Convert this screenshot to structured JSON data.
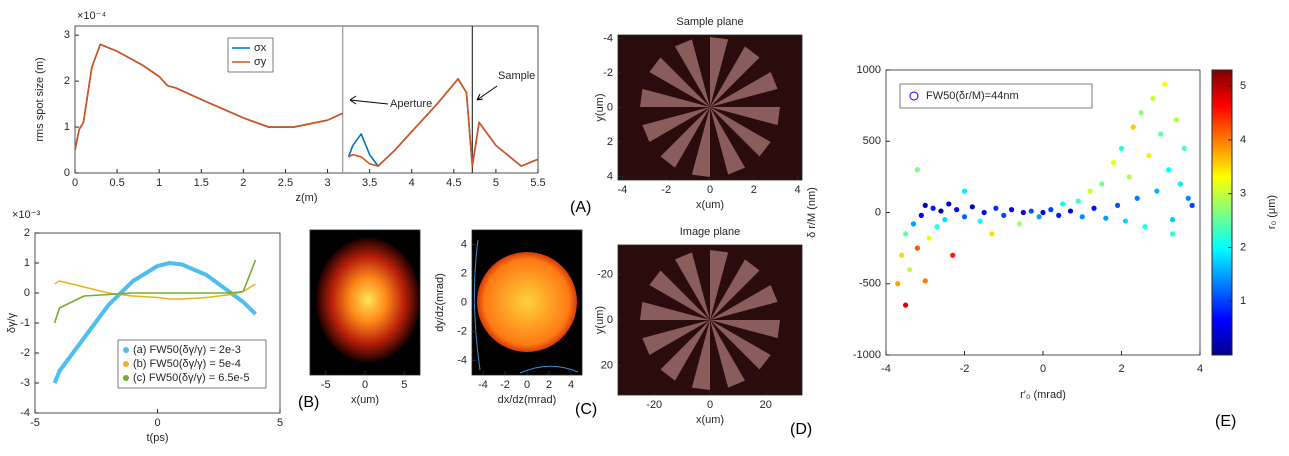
{
  "chart_data": [
    {
      "type": "line",
      "panel_label": "(A)",
      "xlabel": "z(m)",
      "ylabel": "rms spot size (m)",
      "y_multiplier": "×10⁻⁴",
      "annotations": [
        {
          "text": "Aperture",
          "x": 3.18
        },
        {
          "text": "Sample",
          "x": 4.72
        }
      ],
      "x": [
        0,
        0.05,
        0.1,
        0.2,
        0.3,
        0.5,
        0.8,
        1.0,
        1.1,
        1.2,
        1.5,
        2.0,
        2.3,
        2.6,
        3.0,
        3.18,
        3.2,
        3.25,
        3.3,
        3.4,
        3.5,
        3.6,
        3.8,
        4.0,
        4.3,
        4.55,
        4.65,
        4.72,
        4.8,
        5.0,
        5.3,
        5.5
      ],
      "series": [
        {
          "name": "σx",
          "color": "#0072bd",
          "values": [
            0.5,
            0.95,
            1.1,
            2.3,
            2.8,
            2.65,
            2.35,
            2.1,
            1.9,
            1.85,
            1.6,
            1.2,
            1.0,
            1.0,
            1.15,
            1.3,
            null,
            0.35,
            0.6,
            0.85,
            0.4,
            0.15,
            0.5,
            0.9,
            1.5,
            2.05,
            1.75,
            0.15,
            1.1,
            0.6,
            0.15,
            0.3
          ]
        },
        {
          "name": "σy",
          "color": "#d95319",
          "values": [
            0.5,
            0.95,
            1.1,
            2.3,
            2.8,
            2.65,
            2.35,
            2.1,
            1.9,
            1.85,
            1.6,
            1.2,
            1.0,
            1.0,
            1.15,
            1.3,
            null,
            0.35,
            0.4,
            0.35,
            0.2,
            0.15,
            0.5,
            0.9,
            1.5,
            2.05,
            1.75,
            0.15,
            1.1,
            0.6,
            0.15,
            0.3
          ]
        }
      ],
      "xlim": [
        0,
        5.5
      ],
      "xticks": [
        0,
        0.5,
        1,
        1.5,
        2,
        2.5,
        3,
        3.5,
        4,
        4.5,
        5,
        5.5
      ],
      "ylim": [
        0,
        3.2
      ],
      "yticks": [
        0,
        1,
        2,
        3
      ]
    },
    {
      "type": "line",
      "panel_label": "(B)",
      "xlabel": "t(ps)",
      "ylabel": "δγ/γ",
      "y_multiplier": "×10⁻³",
      "x": [
        -4.2,
        -4,
        -3,
        -2,
        -1,
        0,
        0.5,
        1,
        2,
        3,
        3.5,
        4
      ],
      "series": [
        {
          "name": "(a) FW50(δγ/γ) = 2e-3",
          "color": "#4dbeee",
          "values": [
            -3.0,
            -2.6,
            -1.5,
            -0.4,
            0.4,
            0.9,
            1.0,
            0.95,
            0.6,
            0.0,
            -0.3,
            -0.7
          ]
        },
        {
          "name": "(b) FW50(δγ/γ) = 5e-4",
          "color": "#edb120",
          "values": [
            0.3,
            0.4,
            0.2,
            0.0,
            -0.1,
            -0.15,
            -0.2,
            -0.2,
            -0.15,
            -0.05,
            0.05,
            0.3
          ]
        },
        {
          "name": "(c) FW50(δγ/γ) = 6.5e-5",
          "color": "#77ac30",
          "values": [
            -1.0,
            -0.5,
            -0.1,
            -0.05,
            0.0,
            0.0,
            0.0,
            0.0,
            0.0,
            0.0,
            0.05,
            1.1
          ]
        }
      ],
      "xlim": [
        -5,
        5
      ],
      "xticks": [
        -5,
        0,
        5
      ],
      "ylim": [
        -4,
        2
      ],
      "yticks": [
        -4,
        -3,
        -2,
        -1,
        0,
        1,
        2
      ]
    },
    {
      "type": "image",
      "panel_label": "(C)",
      "panels": [
        {
          "xlabel": "x(um)",
          "xlim": [
            -7,
            7
          ],
          "xticks": [
            -5,
            0,
            5
          ]
        },
        {
          "xlabel": "dx/dz(mrad)",
          "ylabel": "dy/dz(mrad)",
          "xlim": [
            -5,
            5
          ],
          "xticks": [
            -4,
            -2,
            0,
            2,
            4
          ],
          "ylim": [
            -5,
            5
          ],
          "yticks": [
            -4,
            -2,
            0,
            2,
            4
          ]
        }
      ]
    },
    {
      "type": "image",
      "panel_label": "(D)",
      "panels": [
        {
          "title": "Sample plane",
          "xlabel": "x(um)",
          "ylabel": "y(um)",
          "xlim": [
            -4.2,
            4.2
          ],
          "xticks": [
            -4,
            -2,
            0,
            2,
            4
          ],
          "ylim": [
            4.2,
            -4.2
          ],
          "yticks": [
            -4,
            -2,
            0,
            2,
            4
          ]
        },
        {
          "title": "Image plane",
          "xlabel": "x(um)",
          "ylabel": "y(um)",
          "xlim": [
            -33,
            33
          ],
          "xticks": [
            -20,
            0,
            20
          ],
          "ylim": [
            33,
            -33
          ],
          "yticks": [
            -20,
            0,
            20
          ]
        }
      ]
    },
    {
      "type": "scatter",
      "panel_label": "(E)",
      "xlabel": "r′₀ (mrad)",
      "ylabel": "δ r/M (nm)",
      "legend": "FW50(δr/M)=44nm",
      "colorbar_label": "r₀ (μm)",
      "x": [
        -3.6,
        -3.5,
        -3.4,
        -3.3,
        -3.2,
        -3.1,
        -3.0,
        -2.9,
        -2.8,
        -2.7,
        -2.6,
        -2.5,
        -2.4,
        -2.3,
        -2.2,
        -2.0,
        -1.8,
        -1.6,
        -1.5,
        -1.3,
        -1.2,
        -1.0,
        -0.8,
        -0.6,
        -0.5,
        -0.3,
        -0.1,
        0,
        0.2,
        0.4,
        0.5,
        0.7,
        0.9,
        1.0,
        1.2,
        1.3,
        1.5,
        1.6,
        1.8,
        1.9,
        2.0,
        2.1,
        2.2,
        2.3,
        2.4,
        2.5,
        2.6,
        2.7,
        2.8,
        2.9,
        3.0,
        3.1,
        3.2,
        3.3,
        3.4,
        3.5,
        3.6,
        3.7,
        3.8,
        -3.7,
        -3.5,
        -3.0,
        -2.0,
        -3.2,
        3.3
      ],
      "y": [
        -300,
        -150,
        -400,
        -80,
        -250,
        -20,
        50,
        -180,
        30,
        -100,
        10,
        -50,
        60,
        -300,
        20,
        -30,
        40,
        -60,
        0,
        -150,
        30,
        -20,
        20,
        -80,
        0,
        10,
        -30,
        0,
        20,
        -20,
        60,
        10,
        80,
        -30,
        150,
        30,
        200,
        -40,
        350,
        50,
        450,
        -60,
        250,
        600,
        100,
        700,
        -100,
        400,
        800,
        150,
        550,
        900,
        300,
        -50,
        650,
        200,
        450,
        100,
        50,
        -500,
        -650,
        -480,
        150,
        300,
        -150
      ],
      "c": [
        3.5,
        2.5,
        3.0,
        1.5,
        4.2,
        0.6,
        0.4,
        3.2,
        0.8,
        2.2,
        0.3,
        1.8,
        0.5,
        4.5,
        0.7,
        1.2,
        0.4,
        2.0,
        0.5,
        3.5,
        0.9,
        1.0,
        0.6,
        2.8,
        0.4,
        1.1,
        1.5,
        0.5,
        1.0,
        0.8,
        2.0,
        0.6,
        2.3,
        1.4,
        3.0,
        0.7,
        2.6,
        1.5,
        3.2,
        1.1,
        2.2,
        1.8,
        2.9,
        3.6,
        1.3,
        2.7,
        2.1,
        3.4,
        3.0,
        1.6,
        2.5,
        3.3,
        2.0,
        1.7,
        2.9,
        1.9,
        2.4,
        1.4,
        1.0,
        3.8,
        4.8,
        4.0,
        1.9,
        2.6,
        2.2
      ],
      "xlim": [
        -4,
        4
      ],
      "xticks": [
        -4,
        -2,
        0,
        2,
        4
      ],
      "ylim": [
        -1000,
        1000
      ],
      "yticks": [
        -1000,
        -500,
        0,
        500,
        1000
      ],
      "clim": [
        0,
        5.3
      ],
      "cticks": [
        1,
        2,
        3,
        4,
        5
      ]
    }
  ]
}
